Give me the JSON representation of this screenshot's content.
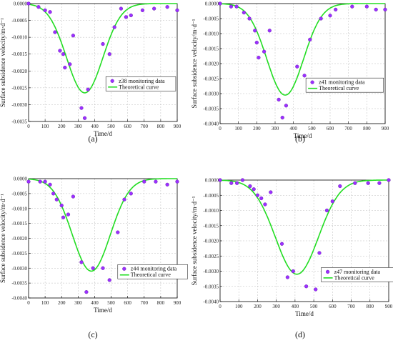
{
  "chart_data": [
    {
      "type": "scatter",
      "caption": "(a)",
      "xlabel": "Time/d",
      "ylabel": "Surface subsidence velocity/m·d⁻¹",
      "xlim": [
        0,
        900
      ],
      "ylim": [
        -0.0035,
        0
      ],
      "xticks": [
        0,
        100,
        200,
        300,
        400,
        500,
        600,
        700,
        800,
        900
      ],
      "yticks": [
        0,
        -0.0005,
        -0.001,
        -0.0015,
        -0.002,
        -0.0025,
        -0.003,
        -0.0035
      ],
      "ytick_labels": [
        "0.0000",
        "-0.0005",
        "-0.0010",
        "-0.0015",
        "-0.0020",
        "-0.0025",
        "-0.0030",
        "-0.0035"
      ],
      "grid": true,
      "legend_position": "center-right",
      "series": [
        {
          "name": "z38 monitoring data",
          "color": "#9b30ff",
          "points": [
            [
              0,
              0
            ],
            [
              60,
              -0.0001
            ],
            [
              100,
              -0.0002
            ],
            [
              130,
              -0.00025
            ],
            [
              160,
              -0.00085
            ],
            [
              190,
              -0.0014
            ],
            [
              210,
              -0.0015
            ],
            [
              220,
              -0.0019
            ],
            [
              250,
              -0.0018
            ],
            [
              270,
              -0.00095
            ],
            [
              320,
              -0.0031
            ],
            [
              340,
              -0.0034
            ],
            [
              360,
              -0.00255
            ],
            [
              450,
              -0.0012
            ],
            [
              490,
              -0.0015
            ],
            [
              520,
              -0.0007
            ],
            [
              560,
              -0.00015
            ],
            [
              590,
              -0.0004
            ],
            [
              620,
              -0.00035
            ],
            [
              690,
              -0.0002
            ],
            [
              760,
              -0.00015
            ],
            [
              840,
              -0.0001
            ],
            [
              900,
              -0.0002
            ]
          ]
        },
        {
          "name": "Theoretical curve",
          "color": "#22dd22",
          "peak": -0.00265,
          "center": 340,
          "sigma": 110
        }
      ]
    },
    {
      "type": "scatter",
      "caption": "(b)",
      "xlabel": "Time/d",
      "ylabel": "Surface subsidence velocity/m·d⁻¹",
      "xlim": [
        0,
        900
      ],
      "ylim": [
        -0.004,
        0
      ],
      "xticks": [
        0,
        100,
        200,
        300,
        400,
        500,
        600,
        700,
        800,
        900
      ],
      "yticks": [
        0,
        -0.0005,
        -0.001,
        -0.0015,
        -0.002,
        -0.0025,
        -0.003,
        -0.0035,
        -0.004
      ],
      "ytick_labels": [
        "0.0000",
        "-0.0005",
        "-0.0010",
        "-0.0015",
        "-0.0020",
        "-0.0025",
        "-0.0030",
        "-0.0035",
        "-0.0040"
      ],
      "grid": true,
      "legend_position": "center-right",
      "series": [
        {
          "name": "z41 monitoring data",
          "color": "#9b30ff",
          "points": [
            [
              0,
              0
            ],
            [
              60,
              -0.0001
            ],
            [
              90,
              -0.0001
            ],
            [
              130,
              -0.0003
            ],
            [
              160,
              -0.0005
            ],
            [
              190,
              -0.0009
            ],
            [
              200,
              -0.0013
            ],
            [
              210,
              -0.0018
            ],
            [
              240,
              -0.0016
            ],
            [
              270,
              -0.0009
            ],
            [
              320,
              -0.0032
            ],
            [
              340,
              -0.0038
            ],
            [
              360,
              -0.0034
            ],
            [
              420,
              -0.0021
            ],
            [
              460,
              -0.0024
            ],
            [
              490,
              -0.0012
            ],
            [
              550,
              -0.0005
            ],
            [
              600,
              -0.0004
            ],
            [
              630,
              -0.0002
            ],
            [
              720,
              -0.0001
            ],
            [
              800,
              -0.0001
            ],
            [
              850,
              -0.0002
            ],
            [
              900,
              -0.0002
            ]
          ]
        },
        {
          "name": "Theoretical curve",
          "color": "#22dd22",
          "peak": -0.00305,
          "center": 355,
          "sigma": 100
        }
      ]
    },
    {
      "type": "scatter",
      "caption": "(c)",
      "xlabel": "Time/d",
      "ylabel": "Surface subsidence velocity/m·d⁻¹",
      "xlim": [
        0,
        900
      ],
      "ylim": [
        -0.004,
        0
      ],
      "xticks": [
        0,
        100,
        200,
        300,
        400,
        500,
        600,
        700,
        800,
        900
      ],
      "yticks": [
        0,
        -0.0005,
        -0.001,
        -0.0015,
        -0.002,
        -0.0025,
        -0.003,
        -0.0035,
        -0.004
      ],
      "ytick_labels": [
        "0.0000",
        "-0.0005",
        "-0.0010",
        "-0.0015",
        "-0.0020",
        "-0.0025",
        "-0.0030",
        "-0.0035",
        "-0.0040"
      ],
      "grid": true,
      "legend_position": "lower-right",
      "series": [
        {
          "name": "z44 monitoring data",
          "color": "#9b30ff",
          "points": [
            [
              0,
              -0.0001
            ],
            [
              70,
              -0.0001
            ],
            [
              100,
              -0.0001
            ],
            [
              130,
              -0.0002
            ],
            [
              150,
              -0.0005
            ],
            [
              170,
              -0.0007
            ],
            [
              200,
              -0.0009
            ],
            [
              210,
              -0.0013
            ],
            [
              240,
              -0.0012
            ],
            [
              270,
              -0.0006
            ],
            [
              320,
              -0.0028
            ],
            [
              350,
              -0.0038
            ],
            [
              390,
              -0.003
            ],
            [
              450,
              -0.003
            ],
            [
              490,
              -0.0034
            ],
            [
              540,
              -0.0018
            ],
            [
              580,
              -0.0007
            ],
            [
              620,
              -0.0005
            ],
            [
              700,
              -0.0001
            ],
            [
              770,
              -0.0001
            ],
            [
              840,
              -0.0002
            ],
            [
              900,
              -0.0001
            ]
          ]
        },
        {
          "name": "Theoretical curve",
          "color": "#22dd22",
          "peak": -0.0031,
          "center": 380,
          "sigma": 115
        }
      ]
    },
    {
      "type": "scatter",
      "caption": "(d)",
      "xlabel": "Time/d",
      "ylabel": "Surface subsidence velocity/m·d⁻¹",
      "xlim": [
        0,
        900
      ],
      "ylim": [
        -0.004,
        0
      ],
      "xticks": [
        0,
        100,
        200,
        300,
        400,
        500,
        600,
        700,
        800,
        900
      ],
      "yticks": [
        0,
        -0.0005,
        -0.001,
        -0.0015,
        -0.002,
        -0.0025,
        -0.003,
        -0.0035,
        -0.004
      ],
      "ytick_labels": [
        "0.0000",
        "-0.0005",
        "-0.0010",
        "-0.0015",
        "-0.0020",
        "-0.0025",
        "-0.0030",
        "-0.0035",
        "-0.0040"
      ],
      "grid": true,
      "legend_position": "lower-right",
      "series": [
        {
          "name": "z47 monitoring data",
          "color": "#9b30ff",
          "points": [
            [
              0,
              0
            ],
            [
              60,
              -0.0001
            ],
            [
              90,
              -0.0001
            ],
            [
              120,
              0
            ],
            [
              160,
              -0.0002
            ],
            [
              180,
              -0.0003
            ],
            [
              200,
              -0.0005
            ],
            [
              220,
              -0.0006
            ],
            [
              240,
              -0.0008
            ],
            [
              270,
              -0.0004
            ],
            [
              330,
              -0.0021
            ],
            [
              360,
              -0.0032
            ],
            [
              390,
              -0.003
            ],
            [
              460,
              -0.0035
            ],
            [
              510,
              -0.0036
            ],
            [
              530,
              -0.0024
            ],
            [
              570,
              -0.001
            ],
            [
              600,
              -0.0007
            ],
            [
              640,
              -0.0002
            ],
            [
              720,
              -0.0001
            ],
            [
              790,
              -0.0001
            ],
            [
              850,
              -0.0001
            ],
            [
              900,
              0
            ]
          ]
        },
        {
          "name": "Theoretical curve",
          "color": "#22dd22",
          "peak": -0.0031,
          "center": 410,
          "sigma": 115
        }
      ]
    }
  ]
}
